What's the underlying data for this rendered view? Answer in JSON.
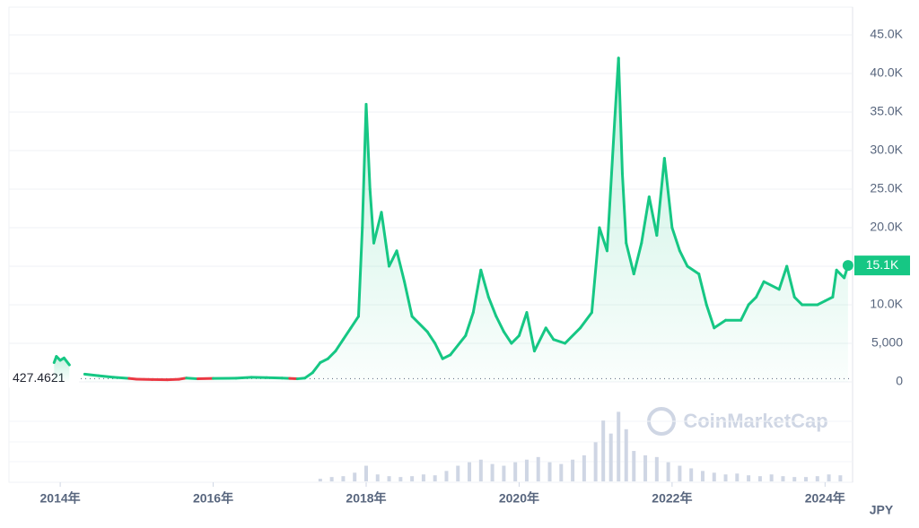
{
  "chart_data": {
    "type": "line",
    "x": [
      2013.92,
      2013.95,
      2014.0,
      2014.05,
      2014.12,
      2014.2,
      2014.32,
      2014.5,
      2014.7,
      2014.9,
      2015.0,
      2015.2,
      2015.4,
      2015.55,
      2015.65,
      2015.8,
      2016.0,
      2016.3,
      2016.5,
      2016.7,
      2016.9,
      2017.0,
      2017.1,
      2017.2,
      2017.3,
      2017.4,
      2017.5,
      2017.6,
      2017.7,
      2017.8,
      2017.9,
      2017.95,
      2018.0,
      2018.05,
      2018.1,
      2018.2,
      2018.3,
      2018.4,
      2018.5,
      2018.6,
      2018.8,
      2018.9,
      2019.0,
      2019.1,
      2019.3,
      2019.4,
      2019.5,
      2019.6,
      2019.7,
      2019.8,
      2019.9,
      2020.0,
      2020.1,
      2020.2,
      2020.35,
      2020.45,
      2020.6,
      2020.8,
      2020.95,
      2021.05,
      2021.15,
      2021.25,
      2021.3,
      2021.35,
      2021.4,
      2021.5,
      2021.6,
      2021.7,
      2021.8,
      2021.9,
      2022.0,
      2022.1,
      2022.2,
      2022.35,
      2022.45,
      2022.55,
      2022.7,
      2022.9,
      2023.0,
      2023.1,
      2023.2,
      2023.4,
      2023.5,
      2023.6,
      2023.7,
      2023.9,
      2024.0,
      2024.1,
      2024.15,
      2024.25,
      2024.3
    ],
    "values": [
      2500,
      3300,
      2800,
      3100,
      2200,
      null,
      1000,
      800,
      600,
      450,
      350,
      300,
      280,
      330,
      500,
      400,
      450,
      480,
      600,
      550,
      500,
      450,
      400,
      500,
      1200,
      2500,
      3000,
      4000,
      5500,
      7000,
      8500,
      20000,
      36000,
      25000,
      18000,
      22000,
      15000,
      17000,
      13000,
      8500,
      6500,
      5000,
      3000,
      3500,
      6000,
      9000,
      14500,
      11000,
      8500,
      6500,
      5000,
      6000,
      9000,
      4000,
      7000,
      5500,
      5000,
      7000,
      9000,
      20000,
      17000,
      34000,
      42000,
      27000,
      18000,
      14000,
      18000,
      24000,
      19000,
      29000,
      20000,
      17000,
      15000,
      14000,
      10000,
      7000,
      8000,
      8000,
      10000,
      11000,
      13000,
      12000,
      15000,
      11000,
      10000,
      10000,
      10500,
      11000,
      14500,
      13500,
      15100
    ],
    "color": "#16c784",
    "down_color": "#ea3943",
    "baseline": 427.4621,
    "last_price": {
      "value": 15100,
      "label": "15.1K"
    },
    "xlim": [
      2013.33,
      2024.36
    ],
    "xticks": [
      {
        "value": 2014,
        "label": "2014年"
      },
      {
        "value": 2016,
        "label": "2016年"
      },
      {
        "value": 2018,
        "label": "2018年"
      },
      {
        "value": 2020,
        "label": "2020年"
      },
      {
        "value": 2022,
        "label": "2022年"
      },
      {
        "value": 2024,
        "label": "2024年"
      }
    ],
    "ylim": [
      0,
      48600
    ],
    "yticks": [
      0,
      {
        "value": 5000,
        "label": "5,000"
      },
      {
        "value": 10000,
        "label": "10.0K"
      },
      {
        "value": 15000,
        "label": "15.0K"
      },
      {
        "value": 20000,
        "label": "20.0K"
      },
      {
        "value": 25000,
        "label": "25.0K"
      },
      {
        "value": 30000,
        "label": "30.0K"
      },
      {
        "value": 35000,
        "label": "35.0K"
      },
      {
        "value": 40000,
        "label": "40.0K"
      },
      {
        "value": 45000,
        "label": "45.0K"
      }
    ],
    "grid": true,
    "watermark": "CoinMarketCap",
    "currency": "JPY",
    "volume": {
      "x": [
        2017.4,
        2017.55,
        2017.7,
        2017.85,
        2018.0,
        2018.15,
        2018.3,
        2018.45,
        2018.6,
        2018.75,
        2018.9,
        2019.05,
        2019.2,
        2019.35,
        2019.5,
        2019.65,
        2019.8,
        2019.95,
        2020.1,
        2020.25,
        2020.4,
        2020.55,
        2020.7,
        2020.85,
        2021.0,
        2021.1,
        2021.2,
        2021.3,
        2021.4,
        2021.5,
        2021.65,
        2021.8,
        2021.95,
        2022.1,
        2022.25,
        2022.4,
        2022.55,
        2022.7,
        2022.85,
        2023.0,
        2023.15,
        2023.3,
        2023.45,
        2023.6,
        2023.75,
        2023.9,
        2024.05,
        2024.2
      ],
      "values": [
        3,
        5,
        6,
        10,
        18,
        8,
        6,
        5,
        6,
        8,
        7,
        12,
        18,
        22,
        25,
        20,
        18,
        22,
        25,
        28,
        22,
        20,
        25,
        30,
        45,
        70,
        55,
        80,
        60,
        35,
        30,
        28,
        22,
        18,
        15,
        12,
        10,
        8,
        9,
        7,
        6,
        8,
        6,
        5,
        5,
        6,
        8,
        7
      ],
      "ylim": [
        0,
        100
      ],
      "color": "#cfd6e4"
    }
  }
}
